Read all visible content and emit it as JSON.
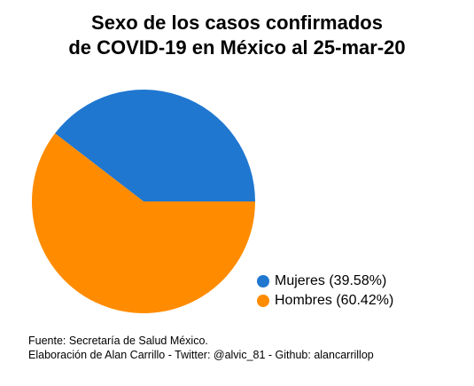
{
  "chart_data": {
    "type": "pie",
    "title_lines": [
      "Sexo de los casos confirmados",
      "de COVID-19 en México al 25-mar-20"
    ],
    "slices": [
      {
        "label": "Mujeres (39.58%)",
        "value": 39.58,
        "color": "#1f77d0"
      },
      {
        "label": "Hombres (60.42%)",
        "value": 60.42,
        "color": "#ff8c00"
      }
    ],
    "legend_position": "bottom-right"
  },
  "footer": {
    "source_line": "Fuente: Secretaría de Salud México.",
    "credit_line": "Elaboración de Alan Carrillo - Twitter: @alvic_81 - Github: alancarrillop"
  }
}
